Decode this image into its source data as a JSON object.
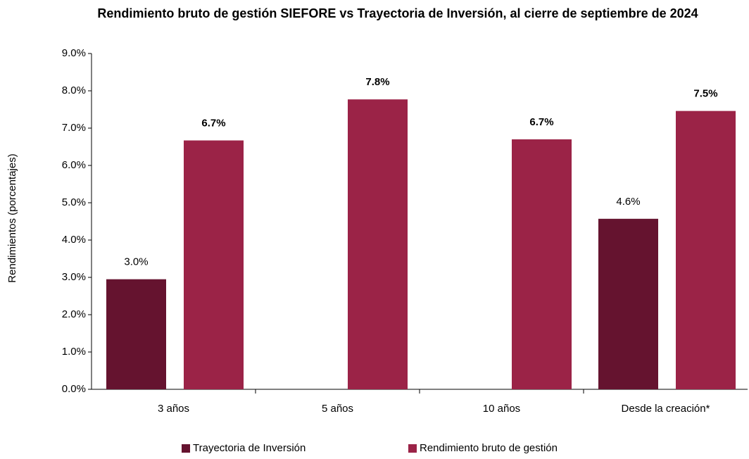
{
  "chart_data": {
    "type": "bar",
    "title": "Rendimiento bruto de gestión SIEFORE vs Trayectoria de Inversión, al cierre de septiembre de 2024",
    "y_label": "Rendimientos (porcentajes)",
    "categories": [
      "3 años",
      "5 años",
      "10 años",
      "Desde la creación*"
    ],
    "series": [
      {
        "name": "Trayectoria de Inversión",
        "color": "#65132f",
        "values": [
          2.95,
          null,
          null,
          4.57
        ],
        "value_labels": [
          "3.0%",
          null,
          null,
          "4.6%"
        ]
      },
      {
        "name": "Rendimiento bruto de gestión",
        "color": "#9b2347",
        "values": [
          6.67,
          7.77,
          6.7,
          7.46
        ],
        "value_labels": [
          "6.7%",
          "7.8%",
          "6.7%",
          "7.5%"
        ]
      }
    ],
    "ylim": [
      0,
      9
    ],
    "yticks": [
      {
        "value": 0,
        "label": "0.0%"
      },
      {
        "value": 1,
        "label": "1.0%"
      },
      {
        "value": 2,
        "label": "2.0%"
      },
      {
        "value": 3,
        "label": "3.0%"
      },
      {
        "value": 4,
        "label": "4.0%"
      },
      {
        "value": 5,
        "label": "5.0%"
      },
      {
        "value": 6,
        "label": "6.0%"
      },
      {
        "value": 7,
        "label": "7.0%"
      },
      {
        "value": 8,
        "label": "8.0%"
      },
      {
        "value": 9,
        "label": "9.0%"
      }
    ],
    "grid": false,
    "legend": "bottom"
  }
}
